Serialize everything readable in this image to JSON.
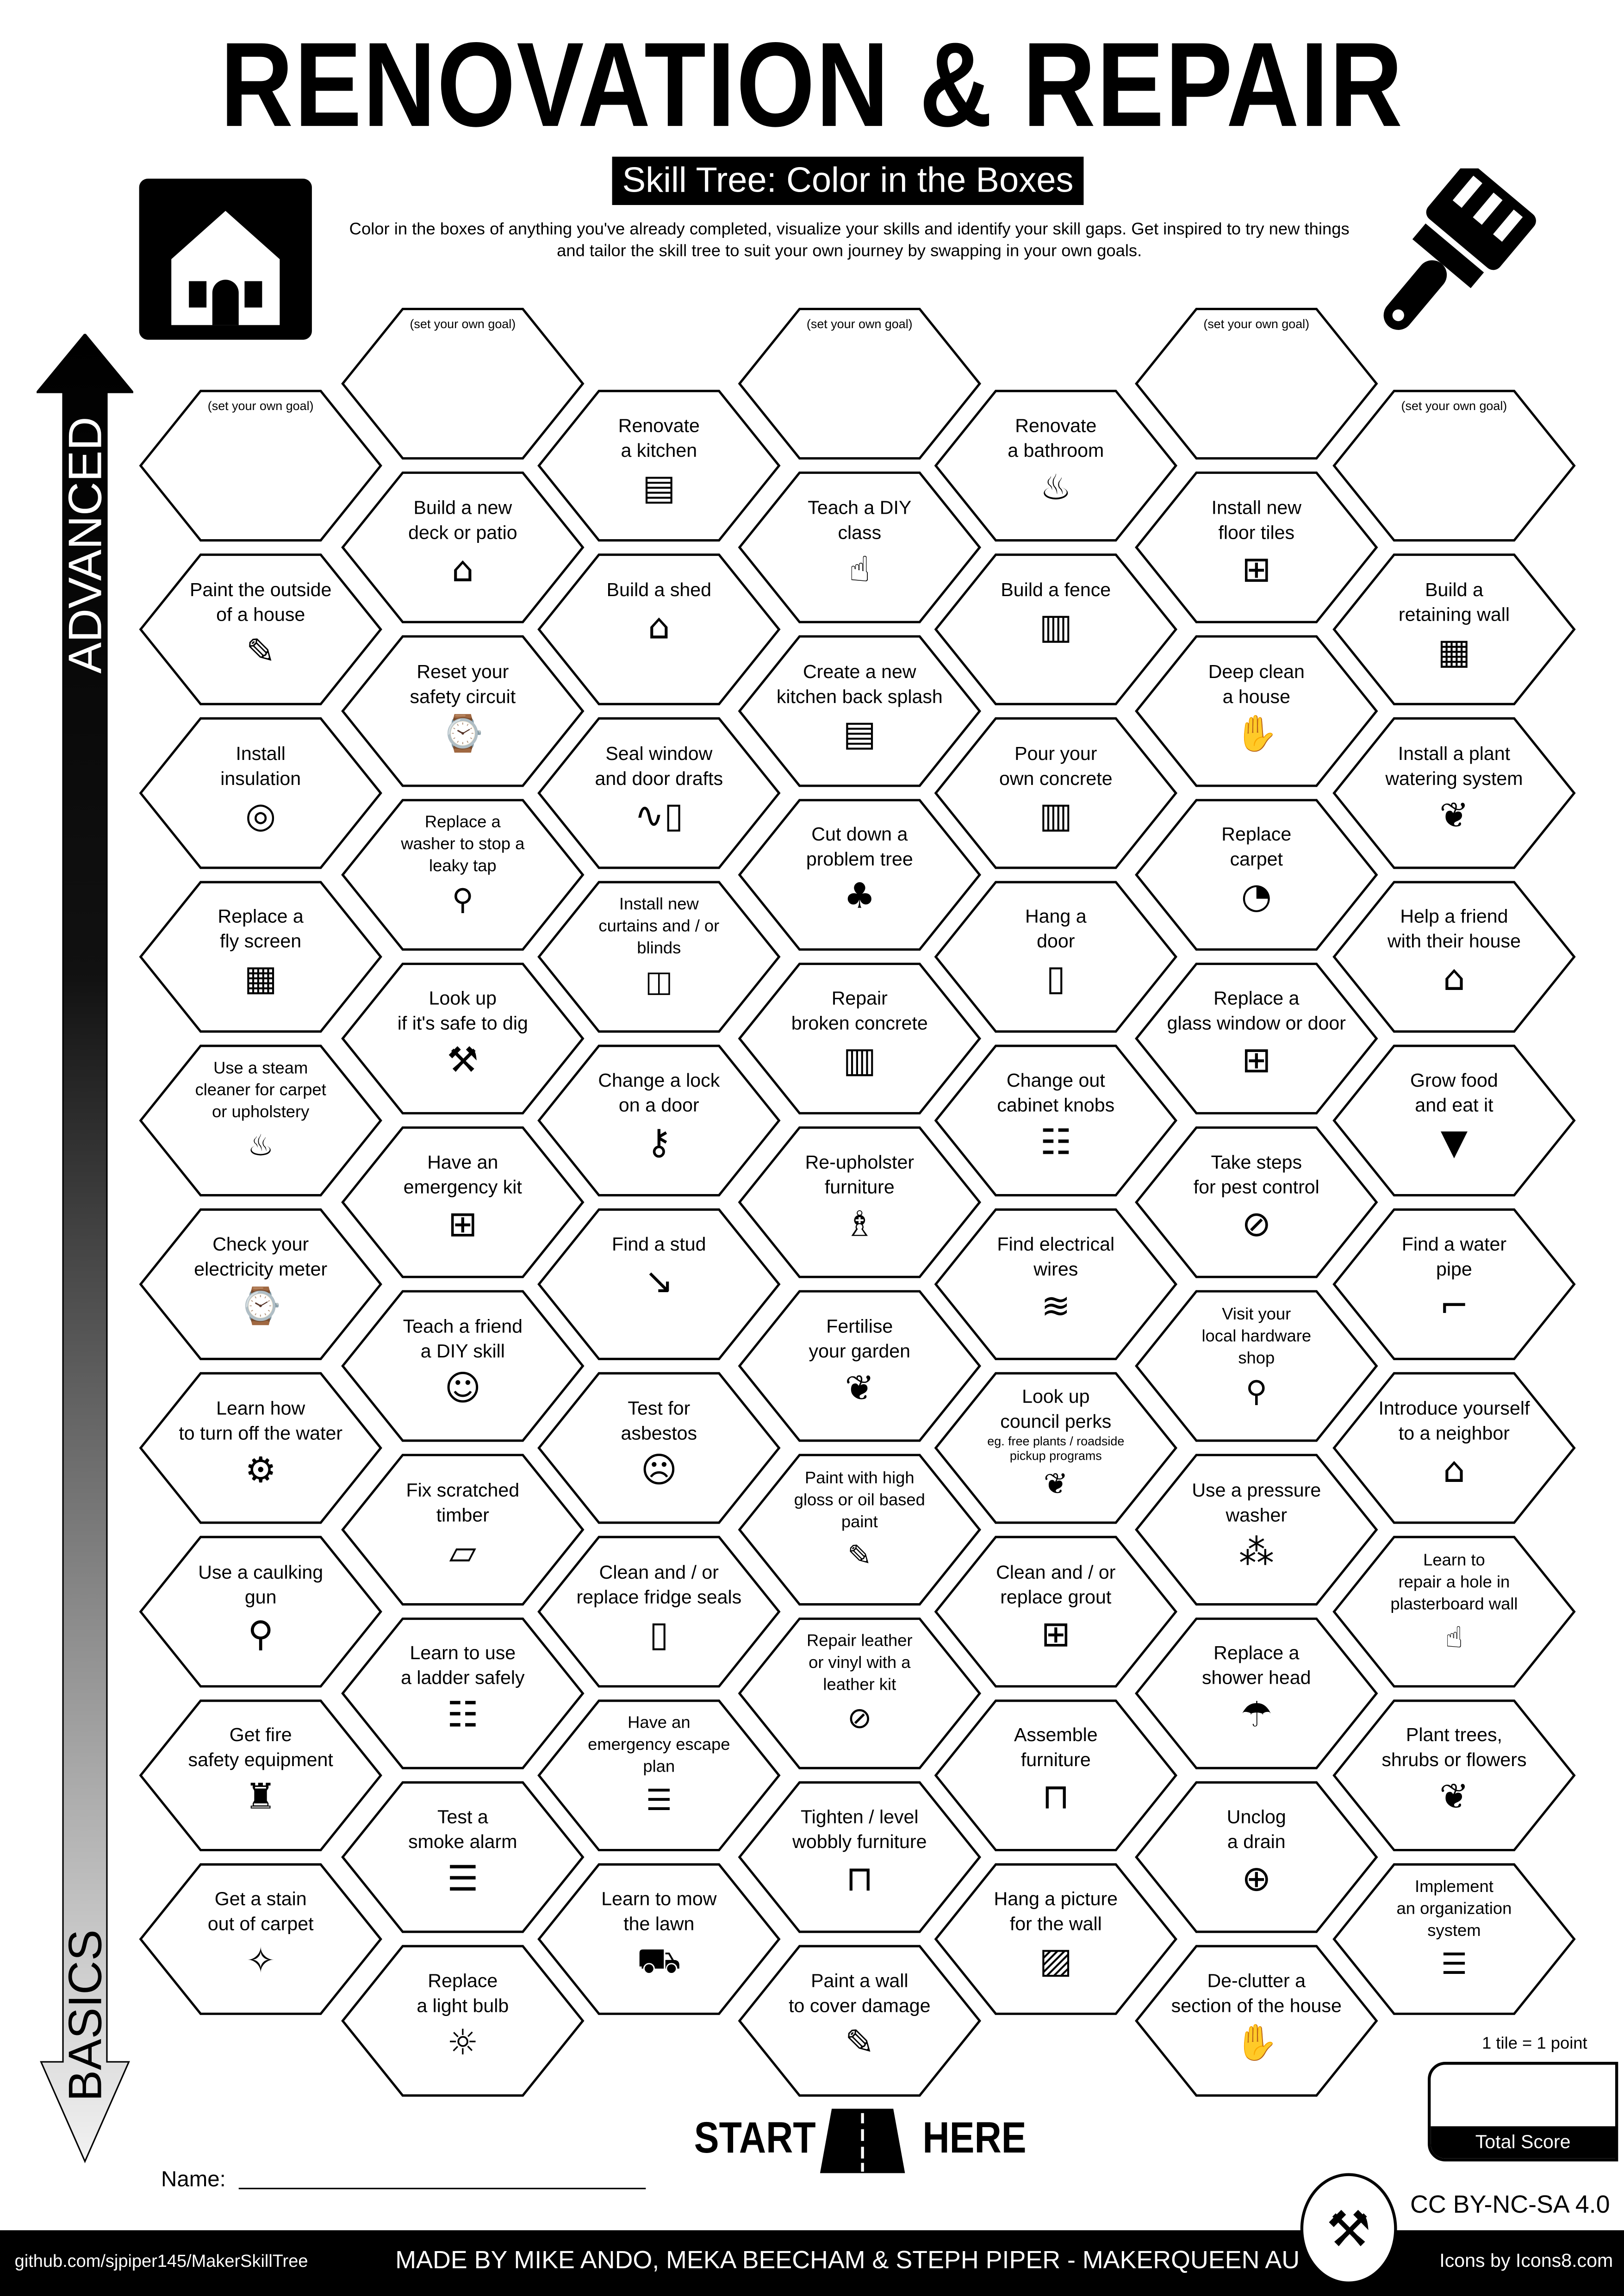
{
  "header": {
    "title": "RENOVATION & REPAIR",
    "subtitle": "Skill Tree: Color in the Boxes",
    "description": "Color in the boxes of anything you've already completed, visualize your skills and identify your skill gaps.  Get inspired to try new things and tailor the skill tree to suit your own journey by swapping in your own goals.",
    "left_icon": "house-icon",
    "right_icon": "paintbrush-icon"
  },
  "axis": {
    "top_label": "ADVANCED",
    "bottom_label": "BASICS"
  },
  "goal_label": "(set your own goal)",
  "columns": [
    [
      {
        "goal": true
      },
      {
        "text": "Paint the outside\nof a house",
        "icon": "paintbrush"
      },
      {
        "text": "Install\ninsulation",
        "icon": "insulation-roll"
      },
      {
        "text": "Replace a\nfly screen",
        "icon": "screen-grid"
      },
      {
        "text": "Use a steam\ncleaner for carpet\nor upholstery",
        "icon": "steam-cleaner"
      },
      {
        "text": "Check your\nelectricity meter",
        "icon": "meter"
      },
      {
        "text": "Learn how\nto turn off the water",
        "icon": "water-pump"
      },
      {
        "text": "Use a caulking\ngun",
        "icon": "caulking-gun"
      },
      {
        "text": "Get fire\nsafety equipment",
        "icon": "fire-extinguisher"
      },
      {
        "text": "Get a stain\nout of carpet",
        "icon": "sparkle"
      }
    ],
    [
      {
        "goal": true
      },
      {
        "text": "Build a new\ndeck or patio",
        "icon": "deck"
      },
      {
        "text": "Reset your\nsafety circuit",
        "icon": "meter"
      },
      {
        "text": "Replace a\nwasher to stop a\nleaky tap",
        "icon": "tap"
      },
      {
        "text": "Look up\nif it's safe to dig",
        "icon": "shovel"
      },
      {
        "text": "Have an\nemergency kit",
        "icon": "first-aid"
      },
      {
        "text": "Teach a friend\na DIY skill",
        "icon": "teaching"
      },
      {
        "text": "Fix scratched\ntimber",
        "icon": "timber"
      },
      {
        "text": "Learn to use\na ladder safely",
        "icon": "ladder"
      },
      {
        "text": "Test a\nsmoke alarm",
        "icon": "smoke-alarm"
      },
      {
        "text": "Replace\na light bulb",
        "icon": "light-bulb"
      }
    ],
    [
      {
        "text": "Renovate\na kitchen",
        "icon": "kitchen"
      },
      {
        "text": "Build a shed",
        "icon": "shed"
      },
      {
        "text": "Seal window\nand door drafts",
        "icon": "door-draft"
      },
      {
        "text": "Install new\ncurtains and / or\nblinds",
        "icon": "curtains"
      },
      {
        "text": "Change a lock\non a door",
        "icon": "door-lock"
      },
      {
        "text": "Find a stud",
        "icon": "nail"
      },
      {
        "text": "Test for\nasbestos",
        "icon": "mask"
      },
      {
        "text": "Clean and / or\nreplace fridge seals",
        "icon": "fridge"
      },
      {
        "text": "Have an\nemergency escape\nplan",
        "icon": "checklist"
      },
      {
        "text": "Learn to mow\nthe lawn",
        "icon": "lawn-mower"
      }
    ],
    [
      {
        "goal": true
      },
      {
        "text": "Teach a DIY\nclass",
        "icon": "teacher"
      },
      {
        "text": "Create a new\nkitchen back splash",
        "icon": "kitchen"
      },
      {
        "text": "Cut down a\nproblem tree",
        "icon": "tree-stump"
      },
      {
        "text": "Repair\nbroken concrete",
        "icon": "concrete"
      },
      {
        "text": "Re-upholster\nfurniture",
        "icon": "chair"
      },
      {
        "text": "Fertilise\nyour garden",
        "icon": "plant"
      },
      {
        "text": "Paint with high\ngloss or oil based\npaint",
        "icon": "paintbrush"
      },
      {
        "text": "Repair leather\nor vinyl with a\nleather kit",
        "icon": "bandage"
      },
      {
        "text": "Tighten / level\nwobbly furniture",
        "icon": "table"
      },
      {
        "text": "Paint a wall\nto cover damage",
        "icon": "paintbrush"
      }
    ],
    [
      {
        "text": "Renovate\na bathroom",
        "icon": "bathtub"
      },
      {
        "text": "Build a fence",
        "icon": "fence"
      },
      {
        "text": "Pour your\nown concrete",
        "icon": "concrete"
      },
      {
        "text": "Hang a\ndoor",
        "icon": "door"
      },
      {
        "text": "Change out\ncabinet knobs",
        "icon": "cabinet"
      },
      {
        "text": "Find electrical\nwires",
        "icon": "wires"
      },
      {
        "text": "Look up\ncouncil perks",
        "sub": "eg. free plants / roadside\npickup programs",
        "icon": "plant"
      },
      {
        "text": "Clean and / or\nreplace grout",
        "icon": "tiles"
      },
      {
        "text": "Assemble\nfurniture",
        "icon": "table"
      },
      {
        "text": "Hang a picture\nfor the wall",
        "icon": "picture"
      }
    ],
    [
      {
        "goal": true
      },
      {
        "text": "Install new\nfloor tiles",
        "icon": "tiles"
      },
      {
        "text": "Deep clean\na house",
        "icon": "cleaning-hand"
      },
      {
        "text": "Replace\ncarpet",
        "icon": "carpet-roll"
      },
      {
        "text": "Replace a\nglass window or door",
        "icon": "window"
      },
      {
        "text": "Take steps\nfor pest control",
        "icon": "no-bugs"
      },
      {
        "text": "Visit your\nlocal hardware\nshop",
        "icon": "location-pin"
      },
      {
        "text": "Use a pressure\nwasher",
        "icon": "sprayer"
      },
      {
        "text": "Replace a\nshower head",
        "icon": "shower"
      },
      {
        "text": "Unclog\na drain",
        "icon": "drain"
      },
      {
        "text": "De-clutter a\nsection of the house",
        "icon": "cleaning-hand"
      }
    ],
    [
      {
        "goal": true
      },
      {
        "text": "Build a\nretaining wall",
        "icon": "brick-wall"
      },
      {
        "text": "Install a plant\nwatering system",
        "icon": "plant"
      },
      {
        "text": "Help a friend\nwith their house",
        "icon": "home-person"
      },
      {
        "text": "Grow food\nand eat it",
        "icon": "carrot"
      },
      {
        "text": "Find a water\npipe",
        "icon": "pipe"
      },
      {
        "text": "Introduce yourself\nto a neighbor",
        "icon": "home-person"
      },
      {
        "text": "Learn to\nrepair a hole in\nplasterboard wall",
        "icon": "plasterer"
      },
      {
        "text": "Plant trees,\nshrubs or flowers",
        "icon": "plant"
      },
      {
        "text": "Implement\nan organization\nsystem",
        "icon": "shelves"
      }
    ]
  ],
  "start": {
    "left": "START",
    "right": "HERE",
    "icon": "road-icon"
  },
  "name_label": "Name:",
  "score": {
    "note": "1 tile = 1 point",
    "label": "Total Score"
  },
  "license": "CC BY-NC-SA 4.0",
  "logo_icon": "makerqueen-logo",
  "footer": {
    "github": "github.com/sjpiper145/MakerSkillTree",
    "credits": "MADE BY MIKE ANDO, MEKA BEECHAM & STEPH PIPER  -  MAKERQUEEN AU",
    "icons_credit": "Icons by Icons8.com"
  }
}
